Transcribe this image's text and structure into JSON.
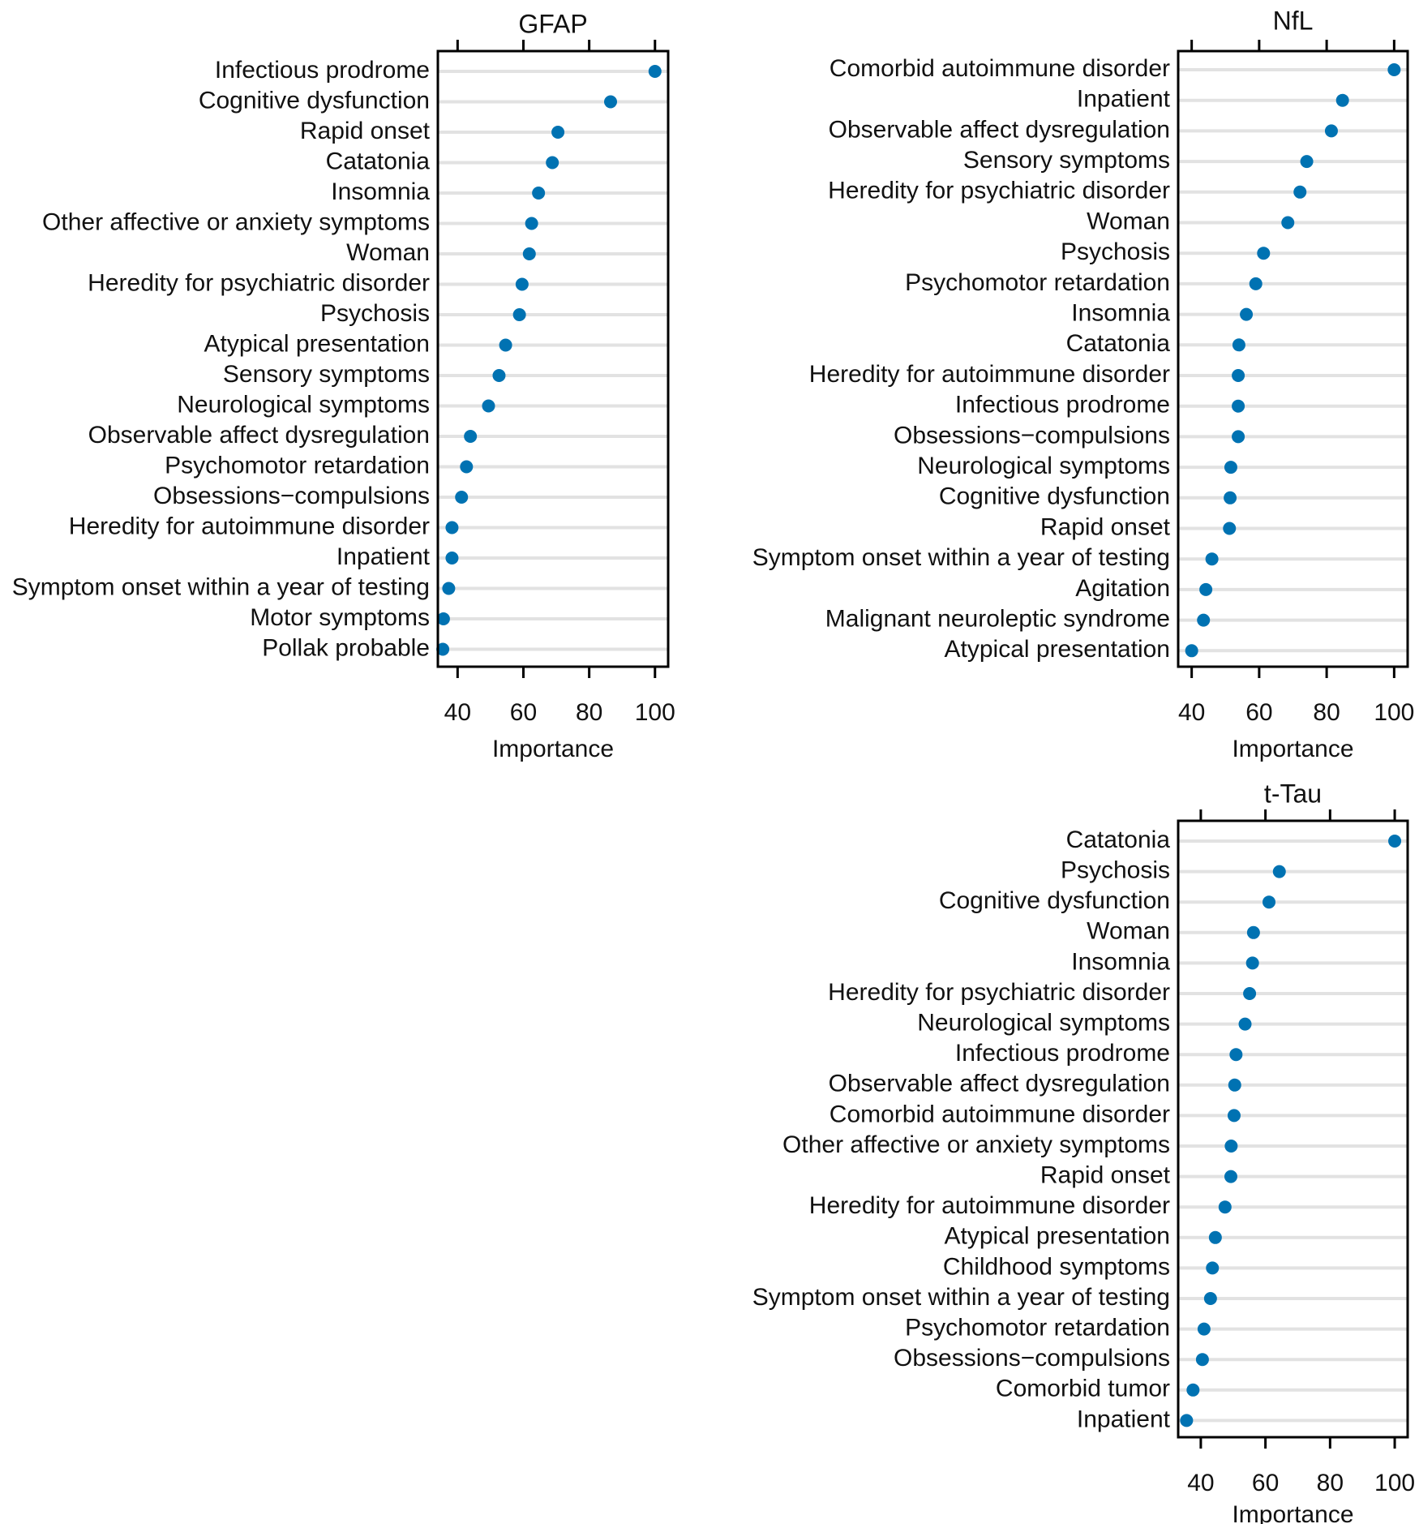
{
  "figure": {
    "x_axis_label": "Importance"
  },
  "chart_data": [
    {
      "type": "scatter",
      "title": "GFAP",
      "xlabel": "Importance",
      "ylabel": "",
      "xlim": [
        34,
        104
      ],
      "xticks": [
        40,
        60,
        80,
        100
      ],
      "categories": [
        "Infectious prodrome",
        "Cognitive dysfunction",
        "Rapid onset",
        "Catatonia",
        "Insomnia",
        "Other affective or anxiety symptoms",
        "Woman",
        "Heredity for psychiatric disorder",
        "Psychosis",
        "Atypical presentation",
        "Sensory symptoms",
        "Neurological symptoms",
        "Observable affect dysregulation",
        "Psychomotor retardation",
        "Obsessions−compulsions",
        "Heredity for autoimmune disorder",
        "Inpatient",
        "Symptom onset within a year of testing",
        "Motor symptoms",
        "Pollak probable"
      ],
      "values": [
        100,
        86.5,
        70.5,
        68.8,
        64.6,
        62.5,
        61.8,
        59.6,
        58.8,
        54.6,
        52.6,
        49.4,
        43.9,
        42.7,
        41.2,
        38.3,
        38.3,
        37.3,
        35.7,
        35.5
      ],
      "grid": true,
      "color": "#0072b2"
    },
    {
      "type": "scatter",
      "title": "NfL",
      "xlabel": "Importance",
      "ylabel": "",
      "xlim": [
        36,
        104
      ],
      "xticks": [
        40,
        60,
        80,
        100
      ],
      "categories": [
        "Comorbid autoimmune disorder",
        "Inpatient",
        "Observable affect dysregulation",
        "Sensory symptoms",
        "Heredity for psychiatric disorder",
        "Woman",
        "Psychosis",
        "Psychomotor retardation",
        "Insomnia",
        "Catatonia",
        "Heredity for autoimmune disorder",
        "Infectious prodrome",
        "Obsessions−compulsions",
        "Neurological symptoms",
        "Cognitive dysfunction",
        "Rapid onset",
        "Symptom onset within a year of testing",
        "Agitation",
        "Malignant neuroleptic syndrome",
        "Atypical presentation"
      ],
      "values": [
        100,
        84.7,
        81.4,
        74.1,
        72.1,
        68.5,
        61.3,
        59.0,
        56.2,
        54.0,
        53.8,
        53.8,
        53.8,
        51.6,
        51.4,
        51.2,
        46.0,
        44.2,
        43.5,
        40.0
      ],
      "grid": true,
      "color": "#0072b2"
    },
    {
      "type": "scatter",
      "title": "t-Tau",
      "xlabel": "Importance",
      "ylabel": "",
      "xlim": [
        33,
        104
      ],
      "xticks": [
        40,
        60,
        80,
        100
      ],
      "categories": [
        "Catatonia",
        "Psychosis",
        "Cognitive dysfunction",
        "Woman",
        "Insomnia",
        "Heredity for psychiatric disorder",
        "Neurological symptoms",
        "Infectious prodrome",
        "Observable affect dysregulation",
        "Comorbid autoimmune disorder",
        "Other affective or anxiety symptoms",
        "Rapid onset",
        "Heredity for autoimmune disorder",
        "Atypical presentation",
        "Childhood symptoms",
        "Symptom onset within a year of testing",
        "Psychomotor retardation",
        "Obsessions−compulsions",
        "Comorbid tumor",
        "Inpatient"
      ],
      "values": [
        100,
        64.3,
        61.1,
        56.3,
        56.0,
        55.1,
        53.7,
        50.9,
        50.5,
        50.3,
        49.4,
        49.3,
        47.5,
        44.5,
        43.6,
        43.0,
        41.0,
        40.5,
        37.6,
        35.6
      ],
      "grid": true,
      "color": "#0072b2"
    }
  ]
}
